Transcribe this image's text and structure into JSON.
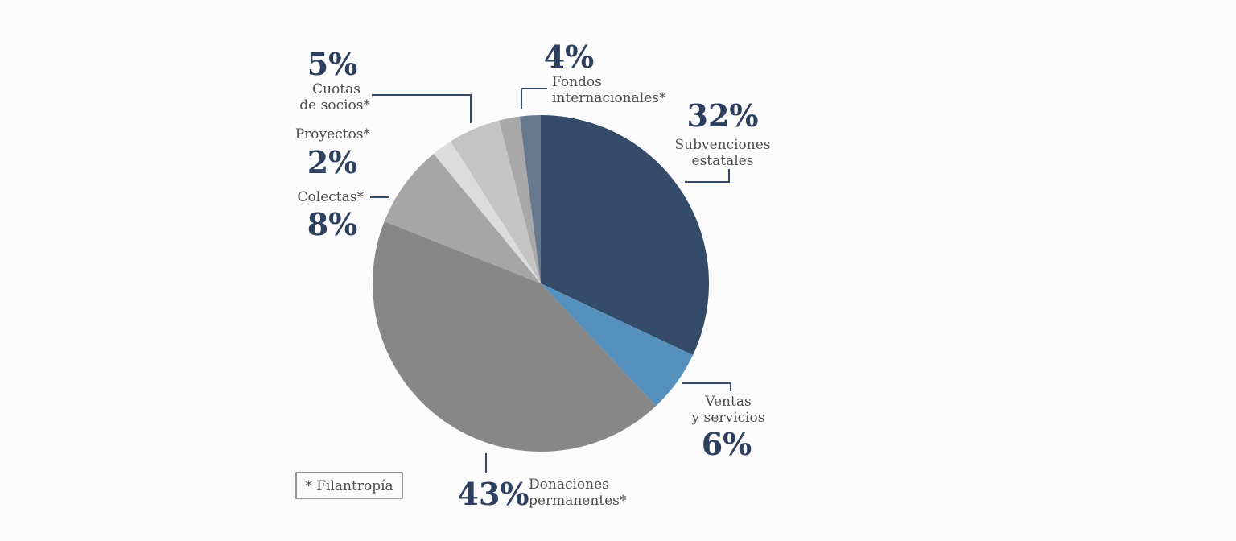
{
  "chart_data": {
    "type": "pie",
    "title": "",
    "slices": [
      {
        "label": "Subvenciones estatales",
        "value": 32,
        "value_label": "32%",
        "color": "#344c69"
      },
      {
        "label": "Ventas y servicios",
        "value": 6,
        "value_label": "6%",
        "color": "#5690bd"
      },
      {
        "label": "Donaciones permanentes*",
        "value": 43,
        "value_label": "43%",
        "color": "#878787"
      },
      {
        "label": "Colectas*",
        "value": 8,
        "value_label": "8%",
        "color": "#a6a6a6"
      },
      {
        "label": "Proyectos*",
        "value": 2,
        "value_label": "2%",
        "color": "#dcdcdc"
      },
      {
        "label": "Cuotas de socios*",
        "value": 5,
        "value_label": "5%",
        "color": "#c4c4c4"
      },
      {
        "label": "Fondos internacionales*",
        "value": 4,
        "value_label": "4%",
        "colors": [
          "#a8a8a8",
          "#68788f"
        ]
      }
    ],
    "label_lines": {
      "subvenciones": [
        "Subvenciones",
        "estatales"
      ],
      "ventas": [
        "Ventas",
        "y servicios"
      ],
      "donaciones": [
        "Donaciones",
        "permanentes*"
      ],
      "colectas": [
        "Colectas*"
      ],
      "proyectos": [
        "Proyectos*"
      ],
      "cuotas": [
        "Cuotas",
        "de socios*"
      ],
      "fondos": [
        "Fondos",
        "internacionales*"
      ]
    },
    "footnote": "* Filantropía"
  }
}
